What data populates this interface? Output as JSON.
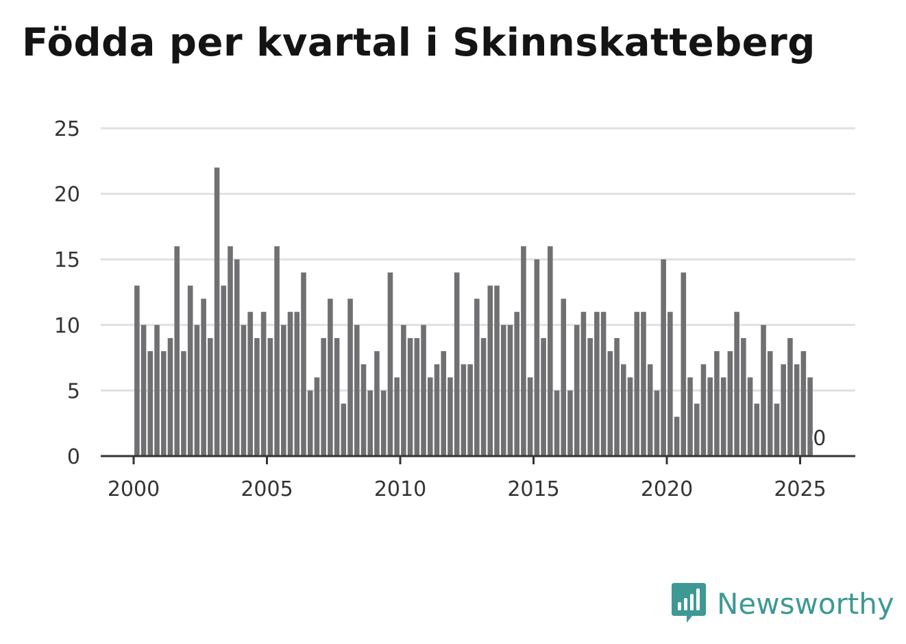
{
  "title": "Födda per kvartal i Skinnskatteberg",
  "brand": {
    "name": "Newsworthy",
    "color": "#3d9994",
    "icon": "newsworthy-logo-icon"
  },
  "colors": {
    "bar": "#707073",
    "grid": "#e0e0e0",
    "axis": "#333333"
  },
  "chart_data": {
    "type": "bar",
    "title": "Födda per kvartal i Skinnskatteberg",
    "xlabel": "",
    "ylabel": "",
    "ylim": [
      0,
      25
    ],
    "yticks": [
      0,
      5,
      10,
      15,
      20,
      25
    ],
    "xticks": [
      2000,
      2005,
      2010,
      2015,
      2020,
      2025
    ],
    "grid": true,
    "start_year": 2000,
    "quarters_per_year": 4,
    "series": [
      {
        "name": "Födda",
        "values": [
          13,
          10,
          8,
          10,
          8,
          9,
          16,
          8,
          13,
          10,
          12,
          9,
          22,
          13,
          16,
          15,
          10,
          11,
          9,
          11,
          9,
          16,
          10,
          11,
          11,
          14,
          5,
          6,
          9,
          12,
          9,
          4,
          12,
          10,
          7,
          5,
          8,
          5,
          14,
          6,
          10,
          9,
          9,
          10,
          6,
          7,
          8,
          6,
          14,
          7,
          7,
          12,
          9,
          13,
          13,
          10,
          10,
          11,
          16,
          6,
          15,
          9,
          16,
          5,
          12,
          5,
          10,
          11,
          9,
          11,
          11,
          8,
          9,
          7,
          6,
          11,
          11,
          7,
          5,
          15,
          11,
          3,
          14,
          6,
          4,
          7,
          6,
          8,
          6,
          8,
          11,
          9,
          6,
          4,
          10,
          8,
          4,
          7,
          9,
          7,
          8,
          6,
          0
        ]
      }
    ],
    "annotations": [
      {
        "label": "0",
        "target": "last"
      }
    ]
  }
}
